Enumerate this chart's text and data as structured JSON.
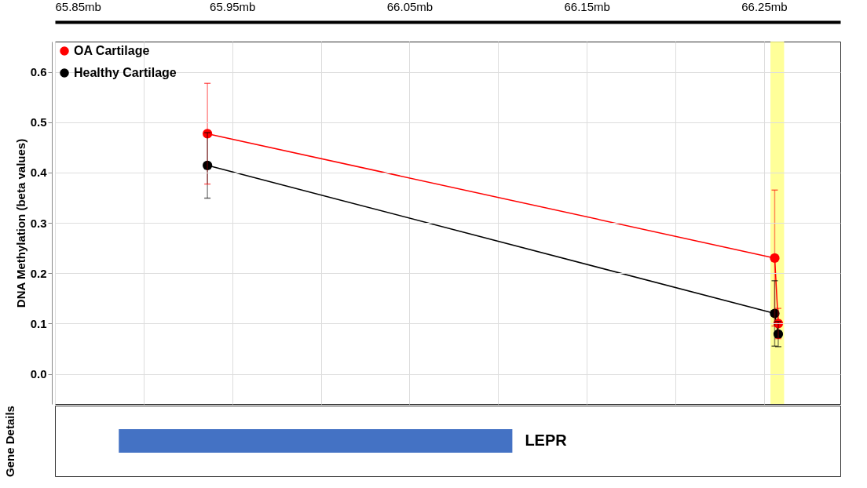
{
  "chart_data": [
    {
      "type": "line",
      "ylabel": "DNA Methylation (beta values)",
      "xlim": [
        65.85,
        66.293
      ],
      "xticks": [
        {
          "value": 65.85,
          "label": "65.85mb"
        },
        {
          "value": 65.9,
          "label": null
        },
        {
          "value": 65.95,
          "label": "65.95mb"
        },
        {
          "value": 66.0,
          "label": null
        },
        {
          "value": 66.05,
          "label": "66.05mb"
        },
        {
          "value": 66.1,
          "label": null
        },
        {
          "value": 66.15,
          "label": "66.15mb"
        },
        {
          "value": 66.2,
          "label": null
        },
        {
          "value": 66.25,
          "label": "66.25mb"
        }
      ],
      "ylim": [
        -0.06,
        0.66
      ],
      "yticks": [
        {
          "value": 0,
          "label": "0.0"
        },
        0.1,
        0.2,
        0.3,
        0.4,
        0.5,
        0.6
      ],
      "series": [
        {
          "name": "OA Cartilage",
          "color": "#ff0000",
          "x": [
            65.936,
            66.256,
            66.258
          ],
          "values": [
            0.477,
            0.23,
            0.1
          ],
          "errors": [
            0.1,
            0.135,
            0.03
          ]
        },
        {
          "name": "Healthy Cartilage",
          "color": "#000000",
          "x": [
            65.936,
            66.256,
            66.258
          ],
          "values": [
            0.414,
            0.12,
            0.079
          ],
          "errors": [
            0.065,
            0.065,
            0.025
          ]
        }
      ],
      "bands": [
        {
          "axis": "x",
          "from": 66.2536,
          "to": 66.2613,
          "color": "#ffff80"
        }
      ],
      "grid": true,
      "legend": "top left",
      "marker": "circle",
      "line_style": "solid"
    },
    {
      "type": "bar",
      "orientation": "horizontal",
      "ylabel": "Gene Details",
      "categories": [
        null
      ],
      "xlim": [
        65.85,
        66.293
      ],
      "base": [
        65.886
      ],
      "values": [
        0.222
      ],
      "color": "#4472c4",
      "annotations": [
        "LEPR"
      ],
      "tick_labels": false
    }
  ]
}
